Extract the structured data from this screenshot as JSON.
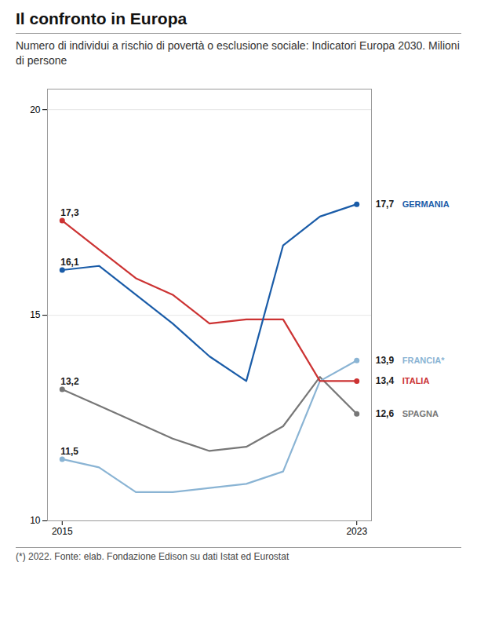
{
  "chart_data": {
    "type": "line",
    "title": "Il confronto in Europa",
    "subtitle": "Numero di individui a rischio di povertà o esclusione sociale: Indicatori Europa 2030. Milioni di persone",
    "caption": "(*) 2022. Fonte: elab. Fondazione Edison su dati Istat ed Eurostat",
    "x": [
      2015,
      2016,
      2017,
      2018,
      2019,
      2020,
      2021,
      2022,
      2023
    ],
    "series": [
      {
        "name": "SPAGNA",
        "color": "#777777",
        "values": [
          13.2,
          12.8,
          12.4,
          12.0,
          11.7,
          11.8,
          12.3,
          13.5,
          12.6
        ],
        "value_labels": [
          "13,2",
          null,
          null,
          null,
          null,
          null,
          null,
          null,
          "12,6"
        ]
      },
      {
        "name": "FRANCIA*",
        "color": "#8ab4d4",
        "values": [
          11.5,
          11.3,
          10.7,
          10.7,
          10.8,
          10.9,
          11.2,
          13.4,
          13.9
        ],
        "value_labels": [
          "11,5",
          null,
          null,
          null,
          null,
          null,
          null,
          null,
          "13,9"
        ]
      },
      {
        "name": "ITALIA",
        "color": "#cc3333",
        "values": [
          17.3,
          16.6,
          15.9,
          15.5,
          14.8,
          14.9,
          14.9,
          13.4,
          13.4
        ],
        "value_labels": [
          "17,3",
          null,
          null,
          null,
          null,
          null,
          null,
          null,
          "13,4"
        ]
      },
      {
        "name": "GERMANIA",
        "color": "#1a5ca8",
        "values": [
          16.1,
          16.2,
          15.5,
          14.8,
          14.0,
          13.4,
          16.7,
          17.4,
          17.7
        ],
        "value_labels": [
          "16,1",
          null,
          null,
          null,
          null,
          null,
          null,
          null,
          "17,7"
        ]
      }
    ],
    "xlim": [
      2014.6,
      2023.4
    ],
    "xticks": [
      2015,
      2023
    ],
    "ylim": [
      10,
      20.5
    ],
    "yticks": [
      10,
      15,
      20
    ],
    "grid": true,
    "data_labels": true
  }
}
